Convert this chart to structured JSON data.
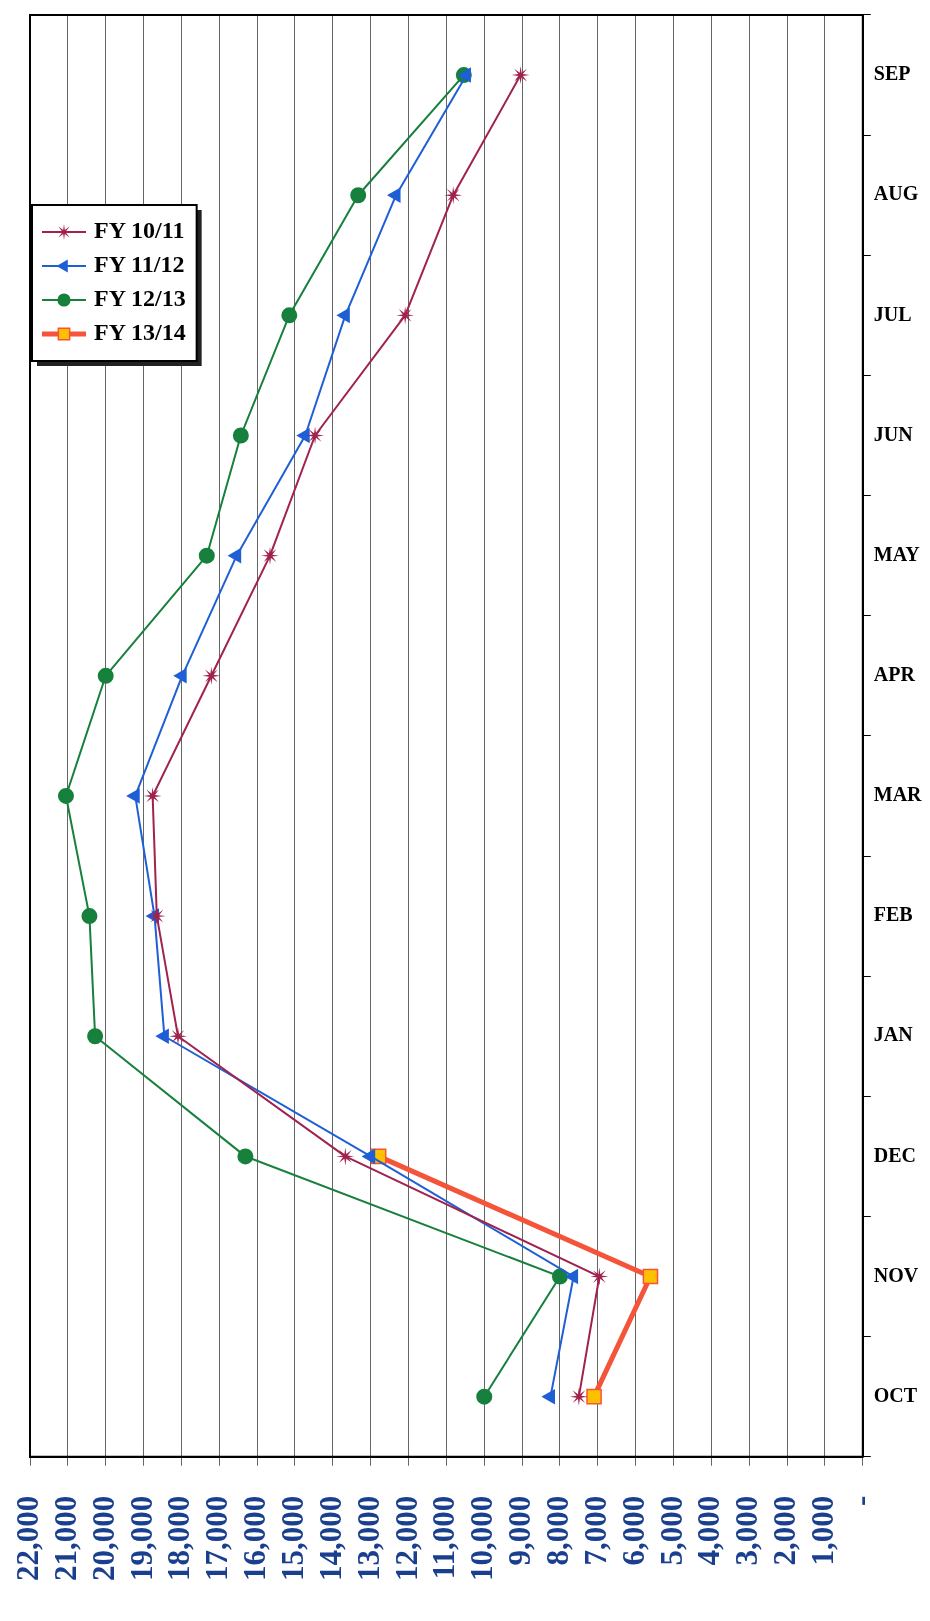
{
  "chart_data": {
    "type": "line",
    "orientation": "horizontal",
    "categories": [
      "SEP",
      "AUG",
      "JUL",
      "JUN",
      "MAY",
      "APR",
      "MAR",
      "FEB",
      "JAN",
      "DEC",
      "NOV",
      "OCT"
    ],
    "series": [
      {
        "name": "FY 10/11",
        "color": "#a0224f",
        "marker": "star",
        "values": [
          9040,
          10820,
          12090,
          14470,
          15660,
          17210,
          18760,
          18650,
          18090,
          13670,
          6960,
          7500
        ]
      },
      {
        "name": "FY 11/12",
        "color": "#1f5fd6",
        "marker": "triangle",
        "values": [
          10470,
          12330,
          13670,
          14730,
          16540,
          17980,
          19220,
          18710,
          18450,
          13000,
          7640,
          8250
        ]
      },
      {
        "name": "FY 12/13",
        "color": "#16803c",
        "marker": "circle",
        "values": [
          10540,
          13330,
          15150,
          16430,
          17330,
          20000,
          21050,
          20430,
          20280,
          16310,
          8000,
          10000
        ]
      },
      {
        "name": "FY 13/14",
        "color": "#f4553a",
        "marker": "square",
        "values": [
          null,
          null,
          null,
          null,
          null,
          null,
          null,
          null,
          null,
          12790,
          5610,
          7100
        ]
      }
    ],
    "xlim": [
      22000,
      0
    ],
    "xticks": [
      {
        "value": 22000,
        "label": "22,000"
      },
      {
        "value": 21000,
        "label": "21,000"
      },
      {
        "value": 20000,
        "label": "20,000"
      },
      {
        "value": 19000,
        "label": "19,000"
      },
      {
        "value": 18000,
        "label": "18,000"
      },
      {
        "value": 17000,
        "label": "17,000"
      },
      {
        "value": 16000,
        "label": "16,000"
      },
      {
        "value": 15000,
        "label": "15,000"
      },
      {
        "value": 14000,
        "label": "14,000"
      },
      {
        "value": 13000,
        "label": "13,000"
      },
      {
        "value": 12000,
        "label": "12,000"
      },
      {
        "value": 11000,
        "label": "11,000"
      },
      {
        "value": 10000,
        "label": "10,000"
      },
      {
        "value": 9000,
        "label": "9,000"
      },
      {
        "value": 8000,
        "label": "8,000"
      },
      {
        "value": 7000,
        "label": "7,000"
      },
      {
        "value": 6000,
        "label": "6,000"
      },
      {
        "value": 5000,
        "label": "5,000"
      },
      {
        "value": 4000,
        "label": "4,000"
      },
      {
        "value": 3000,
        "label": "3,000"
      },
      {
        "value": 2000,
        "label": "2,000"
      },
      {
        "value": 1000,
        "label": "1,000"
      },
      {
        "value": 0,
        "label": "-"
      }
    ],
    "grid": "x",
    "legend": "top left"
  }
}
